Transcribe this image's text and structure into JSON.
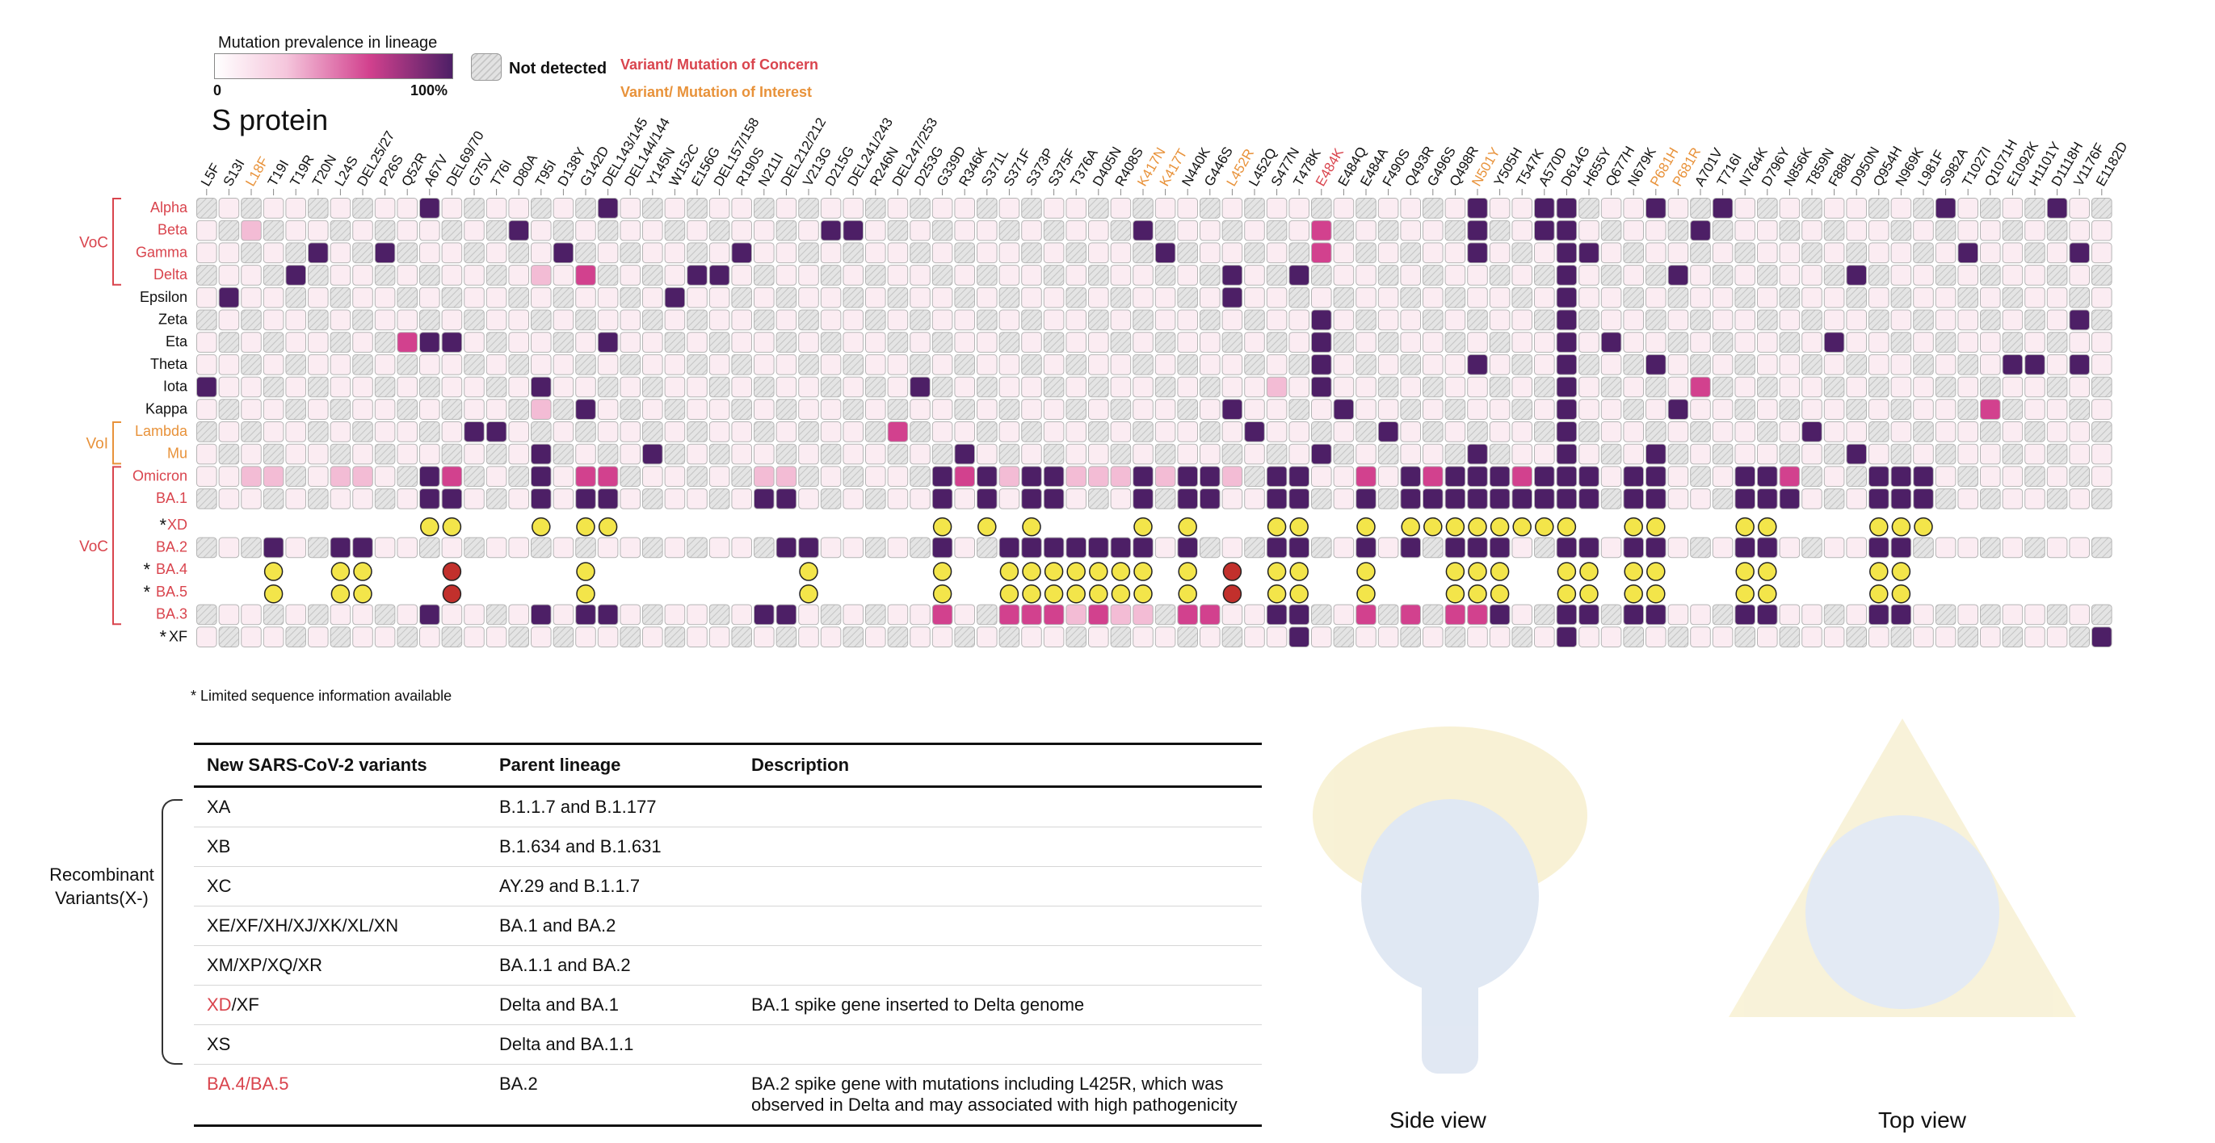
{
  "legend": {
    "title": "Mutation prevalence in lineage",
    "min": "0",
    "max": "100%",
    "not_detected": "Not detected",
    "voc_key": "Variant/ Mutation of Concern",
    "voi_key": "Variant/ Mutation of Interest"
  },
  "protein_title": "S protein",
  "colors": {
    "voc": "#d9444d",
    "voi": "#e8923a",
    "dark": "#4d1f66",
    "mid": "#d2418e",
    "light": "#f3bcd5",
    "pale": "#fbecf2",
    "yellow": "#f3e54a",
    "red": "#c2302c"
  },
  "mutations": [
    "L5F",
    "S13I",
    "L18F",
    "T19I",
    "T19R",
    "T20N",
    "L24S",
    "DEL25/27",
    "P26S",
    "Q52R",
    "A67V",
    "DEL69/70",
    "G75V",
    "T76I",
    "D80A",
    "T95I",
    "D138Y",
    "G142D",
    "DEL143/145",
    "DEL144/144",
    "Y145N",
    "W152C",
    "E156G",
    "DEL157/158",
    "R190S",
    "N211I",
    "DEL212/212",
    "V213G",
    "D215G",
    "DEL241/243",
    "R246N",
    "DEL247/253",
    "D253G",
    "G339D",
    "R346K",
    "S371L",
    "S371F",
    "S373P",
    "S375F",
    "T376A",
    "D405N",
    "R408S",
    "K417N",
    "K417T",
    "N440K",
    "G446S",
    "L452R",
    "L452Q",
    "S477N",
    "T478K",
    "E484K",
    "E484Q",
    "E484A",
    "F490S",
    "Q493R",
    "G496S",
    "Q498R",
    "N501Y",
    "Y505H",
    "T547K",
    "A570D",
    "D614G",
    "H655Y",
    "Q677H",
    "N679K",
    "P681H",
    "P681R",
    "A701V",
    "T716I",
    "N764K",
    "D796Y",
    "N856K",
    "T859N",
    "F888L",
    "D950N",
    "Q954H",
    "N969K",
    "L981F",
    "S982A",
    "T1027I",
    "Q1071H",
    "E1092K",
    "H1101Y",
    "D1118H",
    "V1176F",
    "E1182D"
  ],
  "mutation_classes": {
    "L18F": "voi",
    "K417N": "voi",
    "K417T": "voi",
    "L452R": "voi",
    "E484K": "voc",
    "N501Y": "voi",
    "P681H": "voi",
    "P681R": "voi"
  },
  "lineages": [
    {
      "name": "Alpha",
      "cls": "voc"
    },
    {
      "name": "Beta",
      "cls": "voc"
    },
    {
      "name": "Gamma",
      "cls": "voc"
    },
    {
      "name": "Delta",
      "cls": "voc"
    },
    {
      "name": "Epsilon",
      "cls": ""
    },
    {
      "name": "Zeta",
      "cls": ""
    },
    {
      "name": "Eta",
      "cls": ""
    },
    {
      "name": "Theta",
      "cls": ""
    },
    {
      "name": "Iota",
      "cls": ""
    },
    {
      "name": "Kappa",
      "cls": ""
    },
    {
      "name": "Lambda",
      "cls": "voi"
    },
    {
      "name": "Mu",
      "cls": "voi"
    },
    {
      "name": "Omicron",
      "cls": "voc"
    },
    {
      "name": "BA.1",
      "cls": "voc"
    },
    {
      "name": "XD",
      "cls": "voc",
      "star": true,
      "dots": true
    },
    {
      "name": "BA.2",
      "cls": "voc"
    },
    {
      "name": "BA.4",
      "cls": "voc",
      "star": true,
      "dots": true
    },
    {
      "name": "BA.5",
      "cls": "voc",
      "star": true,
      "dots": true
    },
    {
      "name": "BA.3",
      "cls": "voc"
    },
    {
      "name": "XF",
      "cls": "",
      "star": true
    }
  ],
  "group_labels": [
    {
      "text": "VoC",
      "cls": "voc"
    },
    {
      "text": "VoI",
      "cls": "voi"
    },
    {
      "text": "VoC",
      "cls": "voc"
    }
  ],
  "footnote": "* Limited sequence information available",
  "table": {
    "headers": [
      "New SARS-CoV-2 variants",
      "Parent lineage",
      "Description"
    ],
    "rows": [
      {
        "v": "XA",
        "p": "B.1.1.7 and B.1.177",
        "d": ""
      },
      {
        "v": "XB",
        "p": "B.1.634 and B.1.631",
        "d": ""
      },
      {
        "v": "XC",
        "p": "AY.29 and B.1.1.7",
        "d": ""
      },
      {
        "v": "XE/XF/XH/XJ/XK/XL/XN",
        "p": "BA.1 and BA.2",
        "d": ""
      },
      {
        "v": "XM/XP/XQ/XR",
        "p": "BA.1.1 and BA.2",
        "d": ""
      },
      {
        "v_red": "XD",
        "v_rest": "/XF",
        "p": "Delta and BA.1",
        "d": "BA.1 spike gene inserted to Delta genome"
      },
      {
        "v": "XS",
        "p": "Delta and BA.1.1",
        "d": ""
      },
      {
        "v_red": "BA.4/BA.5",
        "v_rest": "",
        "p": "BA.2",
        "d": "BA.2 spike gene with mutations including L425R, which was observed in Delta and may associated with high pathogenicity"
      }
    ]
  },
  "recombinant_label": "Recombinant Variants(X-)",
  "side_caption": "Side view",
  "top_caption": "Top view"
}
